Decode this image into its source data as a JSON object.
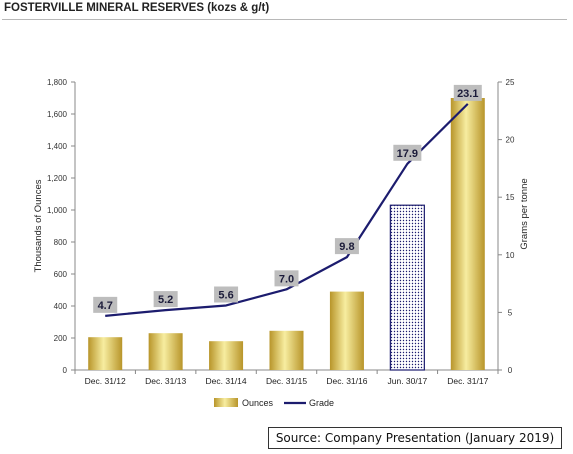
{
  "title": "FOSTERVILLE MINERAL RESERVES (kozs & g/t)",
  "source": "Source: Company Presentation (January 2019)",
  "colors": {
    "bar_gold": "#d9bc45",
    "bar_light": "#f7eda0",
    "line": "#1c1c6e",
    "label_bg": "#bdbdbd",
    "axis": "#888888"
  },
  "chart_data": {
    "type": "bar",
    "categories": [
      "Dec. 31/12",
      "Dec. 31/13",
      "Dec. 31/14",
      "Dec. 31/15",
      "Dec. 31/16",
      "Jun. 30/17",
      "Dec. 31/17"
    ],
    "series": [
      {
        "name": "Ounces",
        "type": "bar",
        "axis": "left",
        "values": [
          205,
          230,
          180,
          245,
          490,
          1030,
          1700
        ],
        "patterned_index": 5
      },
      {
        "name": "Grade",
        "type": "line",
        "axis": "right",
        "values": [
          4.7,
          5.2,
          5.6,
          7.0,
          9.8,
          17.9,
          23.1
        ]
      }
    ],
    "data_labels": [
      "4.7",
      "5.2",
      "5.6",
      "7.0",
      "9.8",
      "17.9",
      "23.1"
    ],
    "ylabel": "Thousands of Ounces",
    "y2label": "Grams per tonne",
    "ylim": [
      0,
      1800
    ],
    "y2lim": [
      0,
      25
    ],
    "yticks": [
      "0",
      "200",
      "400",
      "600",
      "800",
      "1,000",
      "1,200",
      "1,400",
      "1,600",
      "1,800"
    ],
    "y2ticks": [
      "0",
      "5",
      "10",
      "15",
      "20",
      "25"
    ],
    "legend": [
      "Ounces",
      "Grade"
    ],
    "legend_position": "bottom",
    "grid": false
  }
}
